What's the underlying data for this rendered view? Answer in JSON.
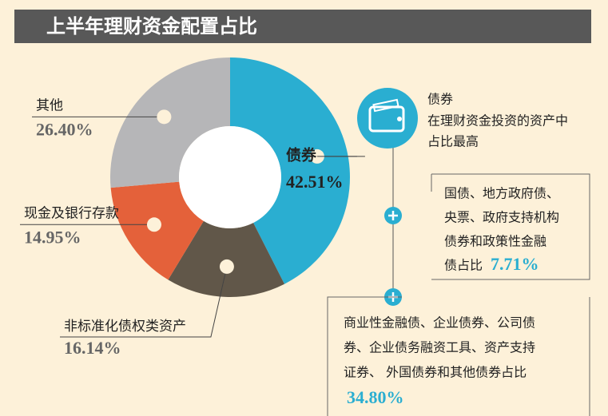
{
  "chart_data": {
    "type": "pie",
    "donut": true,
    "title": "上半年理财资金配置占比",
    "categories": [
      "债券",
      "非标准化债权类资产",
      "现金及银行存款",
      "其他"
    ],
    "values": [
      42.51,
      16.14,
      14.95,
      26.4
    ],
    "value_labels": [
      "42.51%",
      "16.14%",
      "14.95%",
      "26.40%"
    ],
    "colors": [
      "#2aaed1",
      "#615749",
      "#e4613a",
      "#b6b6b8"
    ],
    "callout": {
      "title": "债券",
      "lines": [
        "在理财资金投资的资产中",
        "占比最高"
      ]
    },
    "notes": [
      {
        "lines": [
          "国债、地方政府债、",
          "央票、政府支持机构",
          "债券和政策性金融",
          "债占比"
        ],
        "value_label": "7.71%"
      },
      {
        "lines": [
          "商业性金融债、企业债券、公司债",
          "券、企业债务融资工具、资产支持",
          "证券、 外国债券和其他债券占比"
        ],
        "value_label": "34.80%"
      }
    ]
  }
}
